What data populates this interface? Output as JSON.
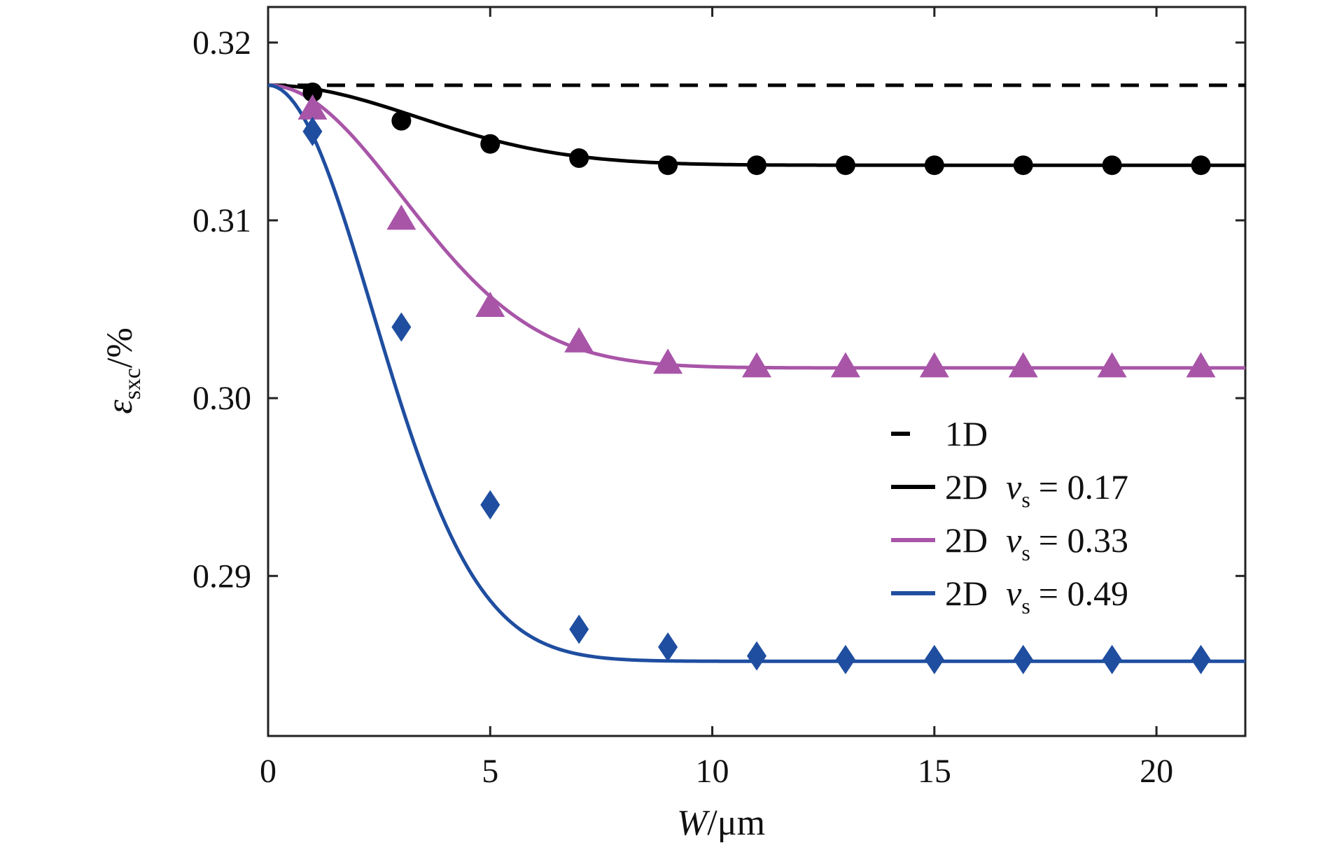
{
  "chart_data": {
    "type": "line",
    "title": "",
    "xlabel": {
      "var": "W",
      "unit": "/μm"
    },
    "ylabel": {
      "var": "ε",
      "sub": "sxc",
      "unit": "/%"
    },
    "xlim": [
      0,
      22
    ],
    "ylim": [
      0.281,
      0.322
    ],
    "xticks": [
      0,
      5,
      10,
      15,
      20
    ],
    "yticks": [
      0.29,
      0.3,
      0.31,
      0.32
    ],
    "xtick_labels": [
      "0",
      "5",
      "10",
      "15",
      "20"
    ],
    "ytick_labels": [
      "0.29",
      "0.30",
      "0.31",
      "0.32"
    ],
    "grid": false,
    "legend_position": "right-center",
    "series": [
      {
        "name": "1D",
        "legend_prefix": "1D",
        "legend_nu": "",
        "color": "#000000",
        "style": "dashed",
        "marker": "none",
        "x": [
          0,
          22
        ],
        "y": [
          0.3176,
          0.3176
        ]
      },
      {
        "name": "2D νs = 0.17",
        "legend_prefix": "2D",
        "legend_nu": "= 0.17",
        "color": "#000000",
        "style": "solid",
        "marker": "circle",
        "curve": {
          "asymptote": 0.3131,
          "start": 0.3176,
          "k": 0.045
        },
        "points_x": [
          1,
          3,
          5,
          7,
          9,
          11,
          13,
          15,
          17,
          19,
          21
        ],
        "points_y": [
          0.3172,
          0.3156,
          0.3143,
          0.3135,
          0.3131,
          0.3131,
          0.3131,
          0.3131,
          0.3131,
          0.3131,
          0.3131
        ]
      },
      {
        "name": "2D νs = 0.33",
        "legend_prefix": "2D",
        "legend_nu": "= 0.33",
        "color": "#a855a8",
        "style": "solid",
        "marker": "triangle",
        "curve": {
          "asymptote": 0.3017,
          "start": 0.3176,
          "k": 0.055
        },
        "points_x": [
          1,
          3,
          5,
          7,
          9,
          11,
          13,
          15,
          17,
          19,
          21
        ],
        "points_y": [
          0.3163,
          0.3101,
          0.3052,
          0.3032,
          0.302,
          0.3018,
          0.3018,
          0.3018,
          0.3018,
          0.3018,
          0.3018
        ]
      },
      {
        "name": "2D νs = 0.49",
        "legend_prefix": "2D",
        "legend_nu": "= 0.49",
        "color": "#1f4ea0",
        "style": "solid",
        "marker": "diamond",
        "curve": {
          "asymptote": 0.2852,
          "start": 0.3176,
          "k": 0.09
        },
        "points_x": [
          1,
          3,
          5,
          7,
          9,
          11,
          13,
          15,
          17,
          19,
          21
        ],
        "points_y": [
          0.315,
          0.304,
          0.294,
          0.287,
          0.286,
          0.2855,
          0.2853,
          0.2853,
          0.2853,
          0.2853,
          0.2853
        ]
      }
    ]
  }
}
